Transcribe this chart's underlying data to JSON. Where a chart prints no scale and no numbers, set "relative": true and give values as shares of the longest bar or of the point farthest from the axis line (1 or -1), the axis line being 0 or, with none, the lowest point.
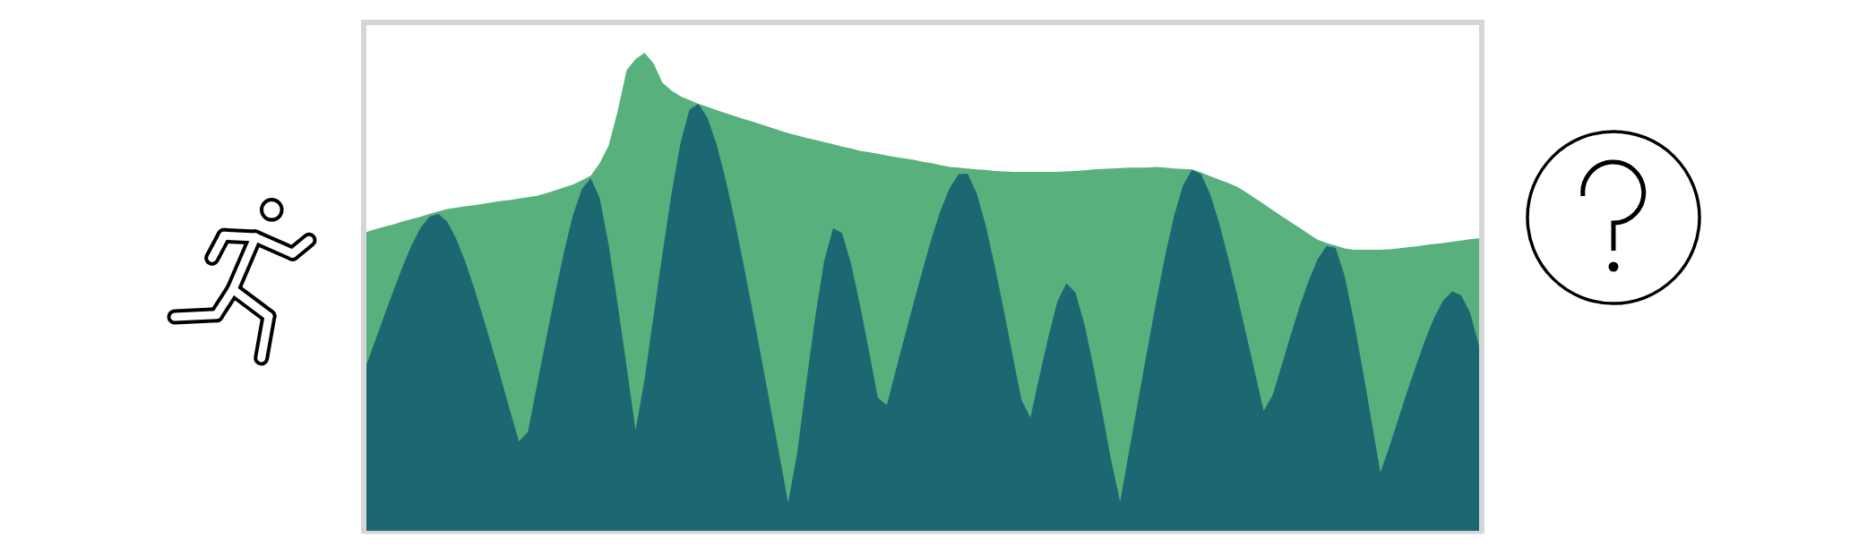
{
  "chart_data": {
    "type": "area",
    "relative": true,
    "categories": [
      null,
      null,
      null,
      null,
      null,
      null,
      null,
      null,
      null,
      null,
      null,
      null,
      null,
      null,
      null,
      null,
      null,
      null,
      null,
      null,
      null,
      null,
      null,
      null,
      null,
      null,
      null,
      null,
      null,
      null,
      null,
      null,
      null,
      null,
      null,
      null,
      null,
      null,
      null,
      null,
      null,
      null,
      null,
      null,
      null,
      null,
      null,
      null,
      null,
      null,
      null,
      null,
      null,
      null,
      null,
      null,
      null,
      null,
      null,
      null,
      null,
      null,
      null,
      null,
      null,
      null,
      null,
      null,
      null,
      null,
      null,
      null,
      null,
      null,
      null,
      null,
      null,
      null,
      null,
      null,
      null,
      null,
      null,
      null,
      null,
      null,
      null,
      null,
      null,
      null,
      null,
      null,
      null,
      null,
      null,
      null,
      null,
      null,
      null,
      null,
      null,
      null,
      null,
      null,
      null,
      null,
      null,
      null,
      null,
      null,
      null,
      null,
      null,
      null,
      null,
      null,
      null,
      null,
      null,
      null,
      null,
      null,
      null,
      null,
      null
    ],
    "series": [
      {
        "color": "#58b07d",
        "values": [
          0.625,
          0.631,
          0.636,
          0.641,
          0.647,
          0.652,
          0.657,
          0.663,
          0.668,
          0.673,
          0.676,
          0.679,
          0.681,
          0.684,
          0.687,
          0.69,
          0.692,
          0.695,
          0.698,
          0.701,
          0.706,
          0.712,
          0.718,
          0.724,
          0.733,
          0.743,
          0.769,
          0.806,
          0.878,
          0.964,
          0.987,
          1,
          0.978,
          0.937,
          0.921,
          0.909,
          0.901,
          0.893,
          0.887,
          0.88,
          0.874,
          0.868,
          0.862,
          0.856,
          0.85,
          0.844,
          0.838,
          0.832,
          0.827,
          0.822,
          0.818,
          0.813,
          0.809,
          0.804,
          0.8,
          0.795,
          0.792,
          0.789,
          0.785,
          0.782,
          0.779,
          0.776,
          0.772,
          0.769,
          0.765,
          0.761,
          0.76,
          0.758,
          0.756,
          0.755,
          0.753,
          0.752,
          0.751,
          0.751,
          0.751,
          0.751,
          0.751,
          0.751,
          0.752,
          0.753,
          0.754,
          0.756,
          0.757,
          0.758,
          0.759,
          0.76,
          0.76,
          0.76,
          0.761,
          0.76,
          0.758,
          0.757,
          0.756,
          0.75,
          0.742,
          0.735,
          0.728,
          0.72,
          0.709,
          0.696,
          0.684,
          0.671,
          0.658,
          0.646,
          0.634,
          0.621,
          0.609,
          0.602,
          0.597,
          0.591,
          0.588,
          0.588,
          0.588,
          0.588,
          0.589,
          0.591,
          0.593,
          0.595,
          0.598,
          0.6,
          0.602,
          0.605,
          0.607,
          0.61,
          0.612
        ]
      },
      {
        "color": "#1b6872",
        "values": [
          0.347,
          0.399,
          0.451,
          0.502,
          0.551,
          0.596,
          0.633,
          0.657,
          0.663,
          0.647,
          0.611,
          0.564,
          0.508,
          0.447,
          0.384,
          0.319,
          0.252,
          0.187,
          0.207,
          0.304,
          0.399,
          0.493,
          0.582,
          0.659,
          0.715,
          0.738,
          0.696,
          0.598,
          0.474,
          0.343,
          0.21,
          0.317,
          0.45,
          0.581,
          0.705,
          0.811,
          0.881,
          0.893,
          0.864,
          0.81,
          0.738,
          0.653,
          0.56,
          0.463,
          0.363,
          0.262,
          0.161,
          0.059,
          0.162,
          0.306,
          0.445,
          0.563,
          0.633,
          0.623,
          0.56,
          0.473,
          0.377,
          0.278,
          0.263,
          0.336,
          0.407,
          0.478,
          0.547,
          0.613,
          0.671,
          0.717,
          0.746,
          0.747,
          0.707,
          0.64,
          0.556,
          0.465,
          0.369,
          0.274,
          0.237,
          0.323,
          0.406,
          0.479,
          0.518,
          0.499,
          0.434,
          0.346,
          0.248,
          0.147,
          0.061,
          0.167,
          0.272,
          0.376,
          0.478,
          0.574,
          0.658,
          0.723,
          0.755,
          0.746,
          0.706,
          0.646,
          0.574,
          0.496,
          0.415,
          0.333,
          0.251,
          0.284,
          0.346,
          0.409,
          0.469,
          0.523,
          0.568,
          0.596,
          0.592,
          0.534,
          0.444,
          0.34,
          0.231,
          0.122,
          0.176,
          0.234,
          0.292,
          0.347,
          0.4,
          0.446,
          0.482,
          0.501,
          0.493,
          0.456,
          0.386
        ]
      }
    ]
  }
}
